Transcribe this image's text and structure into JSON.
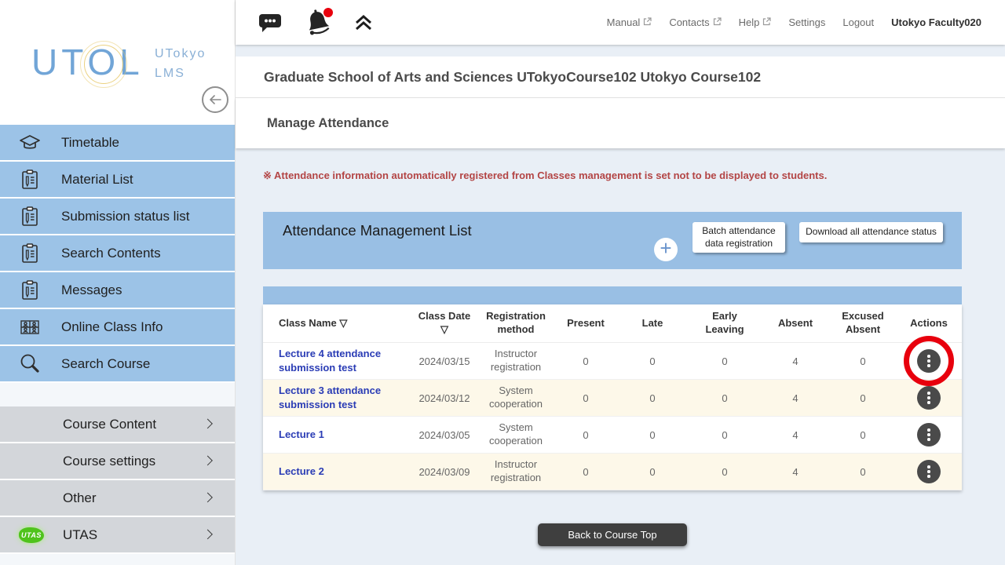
{
  "brand": {
    "logo_parts": [
      "UT",
      "O",
      "L"
    ],
    "subtitle": "UTokyo\nLMS"
  },
  "topbar": {
    "icons": [
      {
        "name": "chat",
        "badge": false
      },
      {
        "name": "bell",
        "badge": true
      },
      {
        "name": "collapse-up",
        "badge": false
      }
    ],
    "links": [
      {
        "label": "Manual",
        "external": true
      },
      {
        "label": "Contacts",
        "external": true
      },
      {
        "label": "Help",
        "external": true
      },
      {
        "label": "Settings",
        "external": false
      },
      {
        "label": "Logout",
        "external": false
      }
    ],
    "username": "Utokyo Faculty020"
  },
  "sidebar": {
    "main": [
      {
        "icon": "grad-cap",
        "label": "Timetable"
      },
      {
        "icon": "clipboard",
        "label": "Material List"
      },
      {
        "icon": "clipboard",
        "label": "Submission status list"
      },
      {
        "icon": "clipboard",
        "label": "Search Contents"
      },
      {
        "icon": "clipboard",
        "label": "Messages"
      },
      {
        "icon": "people-grid",
        "label": "Online Class Info"
      },
      {
        "icon": "magnifier",
        "label": "Search Course"
      }
    ],
    "secondary": [
      {
        "icon": null,
        "label": "Course Content"
      },
      {
        "icon": null,
        "label": "Course settings"
      },
      {
        "icon": null,
        "label": "Other"
      },
      {
        "icon": "utas",
        "label": "UTAS"
      }
    ]
  },
  "course_header": {
    "title": "Graduate School of Arts and Sciences UTokyoCourse102 Utokyo Course102"
  },
  "page": {
    "title": "Manage Attendance",
    "notice": "※ Attendance information automatically registered from Classes management is set not to be displayed to students."
  },
  "panel": {
    "title": "Attendance Management List",
    "add_label": "+",
    "buttons": [
      {
        "label": "Batch attendance data registration"
      },
      {
        "label": "Download all attendance status"
      }
    ]
  },
  "table": {
    "headers": [
      "Class Name ▽",
      "Class Date\n▽",
      "Registration\nmethod",
      "Present",
      "Late",
      "Early\nLeaving",
      "Absent",
      "Excused\nAbsent",
      "Actions"
    ],
    "rows": [
      {
        "class_name": "Lecture 4 attendance submission test",
        "class_date": "2024/03/15",
        "registration_method": "Instructor registration",
        "present": "0",
        "late": "0",
        "early_leaving": "0",
        "absent": "4",
        "excused_absent": "0",
        "annotated": true
      },
      {
        "class_name": "Lecture 3 attendance submission test",
        "class_date": "2024/03/12",
        "registration_method": "System cooperation",
        "present": "0",
        "late": "0",
        "early_leaving": "0",
        "absent": "4",
        "excused_absent": "0",
        "annotated": false
      },
      {
        "class_name": "Lecture 1",
        "class_date": "2024/03/05",
        "registration_method": "System cooperation",
        "present": "0",
        "late": "0",
        "early_leaving": "0",
        "absent": "4",
        "excused_absent": "0",
        "annotated": false
      },
      {
        "class_name": "Lecture 2",
        "class_date": "2024/03/09",
        "registration_method": "Instructor registration",
        "present": "0",
        "late": "0",
        "early_leaving": "0",
        "absent": "4",
        "excused_absent": "0",
        "annotated": false
      }
    ]
  },
  "footer": {
    "back_button": "Back to Course Top"
  },
  "colors": {
    "sidebar_blue": "#9cc3e7",
    "sidebar_gray": "#d3d6da",
    "panel_blue": "#99bfe4",
    "row_alt": "#fdf8e9",
    "notice_red": "#b34545",
    "link_blue": "#2a3cb5",
    "annotation_red": "#e8000d",
    "badge_red": "#e8000d"
  }
}
